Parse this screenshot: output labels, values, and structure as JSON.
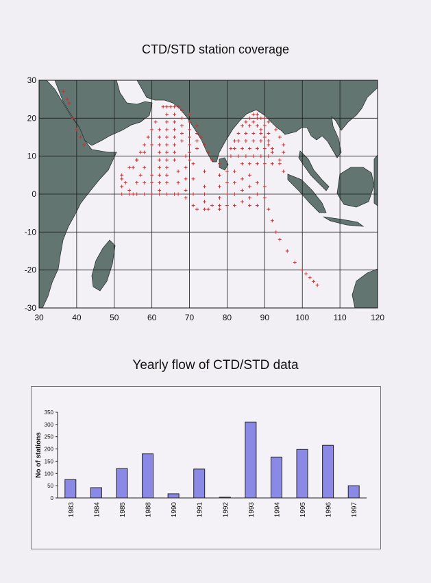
{
  "titles": {
    "map": "CTD/STD  station coverage",
    "bars": "Yearly flow of CTD/STD  data"
  },
  "colors": {
    "land": "#627571",
    "ocean": "#f3f1f6",
    "stations": "#d42a2a",
    "bar_fill": "#8a8ae6",
    "bar_stroke": "#222222",
    "grid": "#1a1a1a"
  },
  "chart_data": [
    {
      "type": "scatter",
      "title": "CTD/STD  station coverage",
      "x_ticks": [
        30,
        40,
        50,
        60,
        70,
        80,
        90,
        100,
        110,
        120
      ],
      "y_ticks": [
        30,
        20,
        10,
        0,
        -10,
        -20,
        -30
      ],
      "xlim": [
        30,
        120
      ],
      "ylim": [
        -30,
        30
      ],
      "grid": true,
      "marker": "+",
      "series": [
        {
          "points": [
            [
              38,
              24
            ],
            [
              39,
              20
            ],
            [
              40,
              17
            ],
            [
              41,
              15
            ],
            [
              42,
              13
            ],
            [
              36.5,
              27
            ],
            [
              37.5,
              25
            ],
            [
              63,
              23
            ],
            [
              64,
              23
            ],
            [
              65,
              23
            ],
            [
              66,
              23
            ],
            [
              67,
              23
            ],
            [
              68,
              22
            ],
            [
              68,
              20
            ],
            [
              68,
              18
            ],
            [
              68,
              16
            ],
            [
              68,
              14
            ],
            [
              64,
              21
            ],
            [
              64,
              19
            ],
            [
              64,
              17
            ],
            [
              64,
              15
            ],
            [
              64,
              13
            ],
            [
              64,
              11
            ],
            [
              64,
              9
            ],
            [
              66,
              21
            ],
            [
              66,
              19
            ],
            [
              66,
              17
            ],
            [
              66,
              15
            ],
            [
              66,
              13
            ],
            [
              66,
              11
            ],
            [
              66,
              9
            ],
            [
              70,
              21
            ],
            [
              70,
              19
            ],
            [
              70,
              17
            ],
            [
              70,
              15
            ],
            [
              70,
              13
            ],
            [
              70,
              11
            ],
            [
              70,
              9
            ],
            [
              72,
              18
            ],
            [
              72,
              16
            ],
            [
              72,
              14
            ],
            [
              72,
              12
            ],
            [
              73,
              15
            ],
            [
              74,
              13
            ],
            [
              75,
              11
            ],
            [
              76,
              9
            ],
            [
              61,
              19
            ],
            [
              60,
              17
            ],
            [
              59,
              15
            ],
            [
              58,
              13
            ],
            [
              57,
              11
            ],
            [
              56,
              9
            ],
            [
              55,
              7
            ],
            [
              62,
              17
            ],
            [
              62,
              15
            ],
            [
              62,
              13
            ],
            [
              62,
              11
            ],
            [
              62,
              9
            ],
            [
              62,
              7
            ],
            [
              62,
              5
            ],
            [
              62,
              3
            ],
            [
              62,
              1
            ],
            [
              62,
              0
            ],
            [
              60,
              13
            ],
            [
              58,
              11
            ],
            [
              56,
              9
            ],
            [
              54,
              7
            ],
            [
              52,
              5
            ],
            [
              53,
              3
            ],
            [
              54,
              1
            ],
            [
              55,
              0
            ],
            [
              52,
              4
            ],
            [
              52,
              2
            ],
            [
              52,
              0
            ],
            [
              54,
              0
            ],
            [
              56,
              0
            ],
            [
              58,
              0
            ],
            [
              60,
              0
            ],
            [
              64,
              0
            ],
            [
              66,
              0
            ],
            [
              60,
              5
            ],
            [
              58,
              7
            ],
            [
              57,
              5
            ],
            [
              56,
              3
            ],
            [
              58,
              3
            ],
            [
              60,
              3
            ],
            [
              64,
              3
            ],
            [
              64,
              5
            ],
            [
              64,
              7
            ],
            [
              67,
              6
            ],
            [
              67,
              3
            ],
            [
              67,
              0
            ],
            [
              69,
              10
            ],
            [
              69,
              7
            ],
            [
              69,
              4
            ],
            [
              69,
              1
            ],
            [
              69,
              -1
            ],
            [
              71,
              8
            ],
            [
              71,
              4
            ],
            [
              71,
              0
            ],
            [
              71,
              -3
            ],
            [
              72,
              -4
            ],
            [
              74,
              6
            ],
            [
              74,
              2
            ],
            [
              74,
              0
            ],
            [
              74,
              -2
            ],
            [
              74,
              -4
            ],
            [
              75,
              -4
            ],
            [
              76,
              -3
            ],
            [
              78,
              8
            ],
            [
              78,
              5
            ],
            [
              78,
              2
            ],
            [
              78,
              -1
            ],
            [
              78,
              -3
            ],
            [
              78,
              -4
            ],
            [
              80,
              6
            ],
            [
              80,
              3
            ],
            [
              80,
              0
            ],
            [
              80,
              -3
            ],
            [
              82,
              6
            ],
            [
              82,
              3
            ],
            [
              82,
              0
            ],
            [
              82,
              -3
            ],
            [
              84,
              4
            ],
            [
              84,
              1
            ],
            [
              84,
              -2
            ],
            [
              86,
              5
            ],
            [
              86,
              2
            ],
            [
              86,
              -1
            ],
            [
              86,
              -3
            ],
            [
              88,
              3
            ],
            [
              88,
              0
            ],
            [
              88,
              -3
            ],
            [
              90,
              2
            ],
            [
              90,
              -1
            ],
            [
              91,
              -4
            ],
            [
              92,
              -7
            ],
            [
              93,
              -10
            ],
            [
              94,
              -12
            ],
            [
              96,
              -15
            ],
            [
              98,
              -18
            ],
            [
              100,
              -20
            ],
            [
              101,
              -21
            ],
            [
              102,
              -22
            ],
            [
              103,
              -23
            ],
            [
              104,
              -24
            ],
            [
              81,
              12
            ],
            [
              82,
              14
            ],
            [
              83,
              16
            ],
            [
              84,
              18
            ],
            [
              85,
              19
            ],
            [
              86,
              20
            ],
            [
              87,
              21
            ],
            [
              88,
              21
            ],
            [
              89,
              20
            ],
            [
              81,
              10
            ],
            [
              83,
              10
            ],
            [
              85,
              10
            ],
            [
              87,
              10
            ],
            [
              89,
              10
            ],
            [
              91,
              10
            ],
            [
              82,
              12
            ],
            [
              84,
              12
            ],
            [
              86,
              12
            ],
            [
              88,
              12
            ],
            [
              90,
              12
            ],
            [
              92,
              12
            ],
            [
              83,
              14
            ],
            [
              85,
              14
            ],
            [
              87,
              14
            ],
            [
              89,
              14
            ],
            [
              91,
              14
            ],
            [
              85,
              16
            ],
            [
              87,
              16
            ],
            [
              89,
              16
            ],
            [
              91,
              16
            ],
            [
              86,
              18
            ],
            [
              88,
              18
            ],
            [
              90,
              18
            ],
            [
              91,
              19
            ],
            [
              90,
              20
            ],
            [
              88,
              20
            ],
            [
              87,
              19
            ],
            [
              89,
              17
            ],
            [
              90,
              15
            ],
            [
              91,
              13
            ],
            [
              92,
              11
            ],
            [
              84,
              8
            ],
            [
              86,
              8
            ],
            [
              88,
              8
            ],
            [
              90,
              8
            ],
            [
              92,
              8
            ],
            [
              94,
              8
            ],
            [
              95,
              6
            ],
            [
              93,
              17
            ],
            [
              94,
              15
            ],
            [
              95,
              13
            ],
            [
              95,
              11
            ],
            [
              94,
              9
            ]
          ]
        }
      ]
    },
    {
      "type": "bar",
      "title": "Yearly flow of CTD/STD  data",
      "ylabel": "No of stations",
      "xlabel": "",
      "ylim": [
        0,
        350
      ],
      "y_ticks": [
        0,
        50,
        100,
        150,
        200,
        250,
        300,
        350
      ],
      "categories": [
        "1983",
        "1984",
        "1985",
        "1988",
        "1990",
        "1991",
        "1992",
        "1993",
        "1994",
        "1995",
        "1996",
        "1997"
      ],
      "values": [
        75,
        42,
        120,
        180,
        17,
        118,
        3,
        310,
        167,
        198,
        215,
        50
      ],
      "grid": false
    }
  ]
}
